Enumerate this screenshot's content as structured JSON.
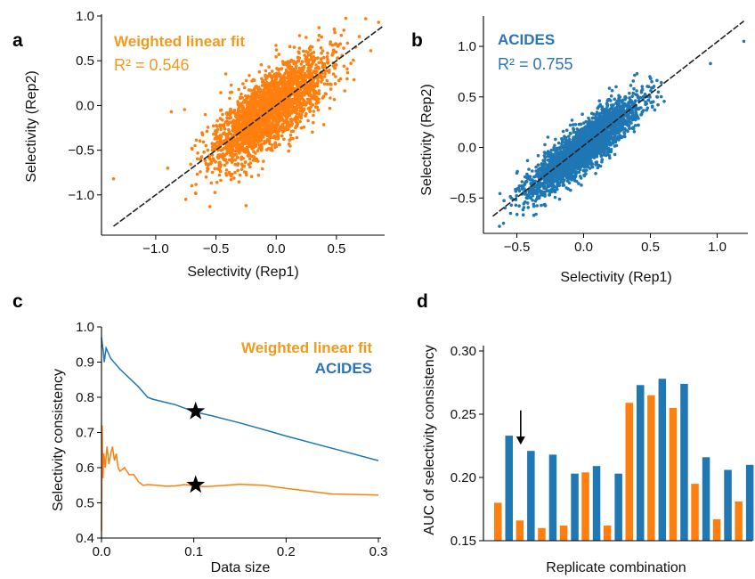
{
  "colors": {
    "orange": "#ff7f0e",
    "blue": "#1f77b4",
    "text_orange": "#f39a1a",
    "text_blue": "#2b74b8"
  },
  "chart_data": [
    {
      "panel": "a",
      "type": "scatter",
      "xlabel": "Selectivity (Rep1)",
      "ylabel": "Selectivity (Rep2)",
      "xlim": [
        -1.45,
        0.9
      ],
      "ylim": [
        -1.45,
        1.02
      ],
      "xticks": [
        -1.0,
        -0.5,
        0.0,
        0.5
      ],
      "yticks": [
        -1.0,
        -0.5,
        0.0,
        0.5,
        1.0
      ],
      "xtick_labels": [
        "−1.0",
        "−0.5",
        "0.0",
        "0.5"
      ],
      "ytick_labels": [
        "−1.0",
        "−0.5",
        "0.0",
        "0.5",
        "1.0"
      ],
      "legend_title": "Weighted linear fit",
      "annotation": "R² = 0.546",
      "series_color": "#ff7f0e",
      "fit_line": {
        "x": [
          -1.35,
          0.88
        ],
        "y": [
          -1.35,
          0.88
        ]
      },
      "point_cloud": {
        "n": 2600,
        "x_mean": -0.05,
        "x_sd": 0.23,
        "y_slope": 0.95,
        "y_noise_sd": 0.2,
        "seed": 11
      },
      "outliers": [
        [
          -1.35,
          -0.82
        ],
        [
          0.85,
          0.93
        ],
        [
          -0.9,
          -0.7
        ],
        [
          -0.55,
          -1.13
        ],
        [
          -0.75,
          -1.05
        ],
        [
          0.62,
          0.47
        ],
        [
          -0.87,
          -0.07
        ],
        [
          -0.25,
          -1.12
        ]
      ]
    },
    {
      "panel": "b",
      "type": "scatter",
      "xlabel": "Selectivity (Rep1)",
      "ylabel": "Selectivity (Rep2)",
      "xlim": [
        -0.75,
        1.23
      ],
      "ylim": [
        -0.85,
        1.3
      ],
      "xticks": [
        -0.5,
        0.0,
        0.5,
        1.0
      ],
      "yticks": [
        -0.5,
        0.0,
        0.5,
        1.0
      ],
      "xtick_labels": [
        "−0.5",
        "0.0",
        "0.5",
        "1.0"
      ],
      "ytick_labels": [
        "−0.5",
        "0.0",
        "0.5",
        "1.0"
      ],
      "legend_title": "ACIDES",
      "annotation": "R² = 0.755",
      "series_color": "#1f77b4",
      "fit_line": {
        "x": [
          -0.68,
          1.2
        ],
        "y": [
          -0.68,
          1.25
        ]
      },
      "point_cloud": {
        "n": 2800,
        "x_mean": 0.0,
        "x_sd": 0.2,
        "y_slope": 1.0,
        "y_noise_sd": 0.11,
        "seed": 23
      },
      "outliers": [
        [
          1.2,
          1.05
        ],
        [
          -0.63,
          -0.78
        ],
        [
          -0.6,
          -0.75
        ],
        [
          0.95,
          0.83
        ],
        [
          -0.42,
          -0.13
        ],
        [
          0.4,
          0.73
        ]
      ]
    },
    {
      "panel": "c",
      "type": "line",
      "xlabel": "Data size",
      "ylabel": "Selectivity consistency",
      "xlim": [
        0.0,
        0.3
      ],
      "ylim": [
        0.4,
        1.0
      ],
      "xticks": [
        0.0,
        0.1,
        0.2,
        0.3
      ],
      "yticks": [
        0.4,
        0.5,
        0.6,
        0.7,
        0.8,
        0.9,
        1.0
      ],
      "xtick_labels": [
        "0.0",
        "0.1",
        "0.2",
        "0.3"
      ],
      "ytick_labels": [
        "0.4",
        "0.5",
        "0.6",
        "0.7",
        "0.8",
        "0.9",
        "1.0"
      ],
      "legend_position": "top-right",
      "series": [
        {
          "name": "Weighted linear fit",
          "color": "#ff7f0e",
          "x": [
            0.0,
            0.0007,
            0.0015,
            0.0025,
            0.004,
            0.006,
            0.008,
            0.01,
            0.012,
            0.014,
            0.016,
            0.018,
            0.02,
            0.025,
            0.03,
            0.035,
            0.04,
            0.045,
            0.05,
            0.06,
            0.07,
            0.08,
            0.09,
            0.1,
            0.11,
            0.12,
            0.13,
            0.14,
            0.15,
            0.175,
            0.2,
            0.25,
            0.3
          ],
          "y": [
            0.42,
            0.72,
            0.57,
            0.64,
            0.6,
            0.66,
            0.61,
            0.64,
            0.66,
            0.62,
            0.64,
            0.6,
            0.59,
            0.6,
            0.58,
            0.58,
            0.56,
            0.55,
            0.552,
            0.55,
            0.547,
            0.548,
            0.552,
            0.549,
            0.546,
            0.547,
            0.549,
            0.551,
            0.553,
            0.55,
            0.541,
            0.525,
            0.522
          ]
        },
        {
          "name": "ACIDES",
          "color": "#1f77b4",
          "x": [
            0.0,
            0.001,
            0.002,
            0.003,
            0.005,
            0.01,
            0.02,
            0.03,
            0.04,
            0.05,
            0.055,
            0.07,
            0.08,
            0.09,
            0.1,
            0.12,
            0.15,
            0.18,
            0.2,
            0.25,
            0.3
          ],
          "y": [
            0.97,
            0.95,
            0.93,
            0.9,
            0.94,
            0.91,
            0.88,
            0.855,
            0.83,
            0.8,
            0.795,
            0.785,
            0.779,
            0.769,
            0.759,
            0.747,
            0.727,
            0.705,
            0.69,
            0.655,
            0.62
          ]
        }
      ],
      "markers": [
        {
          "type": "star",
          "x": 0.102,
          "y": 0.76
        },
        {
          "type": "star",
          "x": 0.102,
          "y": 0.551
        }
      ]
    },
    {
      "panel": "d",
      "type": "bar",
      "xlabel": "Replicate combination",
      "ylabel": "AUC of selectivity consistency",
      "ylim": [
        0.15,
        0.3
      ],
      "yticks": [
        0.15,
        0.2,
        0.25,
        0.3
      ],
      "ytick_labels": [
        "0.15",
        "0.20",
        "0.25",
        "0.30"
      ],
      "series": [
        {
          "name": "Weighted linear fit",
          "color": "#ff7f0e",
          "values": [
            0.18,
            0.166,
            0.16,
            0.162,
            0.204,
            0.162,
            0.259,
            0.265,
            0.255,
            0.195,
            0.167,
            0.181
          ]
        },
        {
          "name": "ACIDES",
          "color": "#1f77b4",
          "values": [
            0.233,
            0.221,
            0.218,
            0.203,
            0.209,
            0.203,
            0.273,
            0.278,
            0.274,
            0.216,
            0.206,
            0.21
          ]
        }
      ],
      "arrow_at_group": 1,
      "arrow_tip_value": 0.226,
      "arrow_tail_value": 0.253
    }
  ]
}
